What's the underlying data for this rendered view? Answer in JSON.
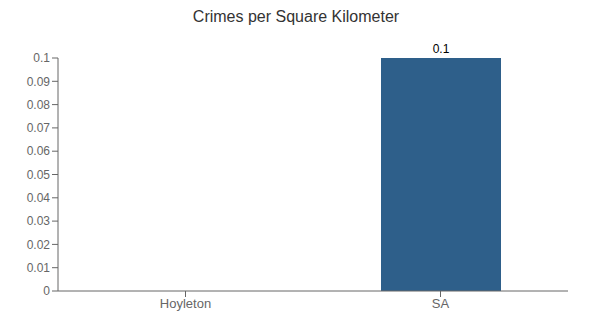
{
  "chart_data": {
    "type": "bar",
    "title": "Crimes per Square Kilometer",
    "categories": [
      "Hoyleton",
      "SA"
    ],
    "values": [
      0,
      0.1
    ],
    "color": "#2e5f8a",
    "ylim": [
      0,
      0.1
    ],
    "yticks": [
      0,
      0.01,
      0.02,
      0.03,
      0.04,
      0.05,
      0.06,
      0.07,
      0.08,
      0.09,
      0.1
    ],
    "grid": false,
    "data_labels": true
  }
}
